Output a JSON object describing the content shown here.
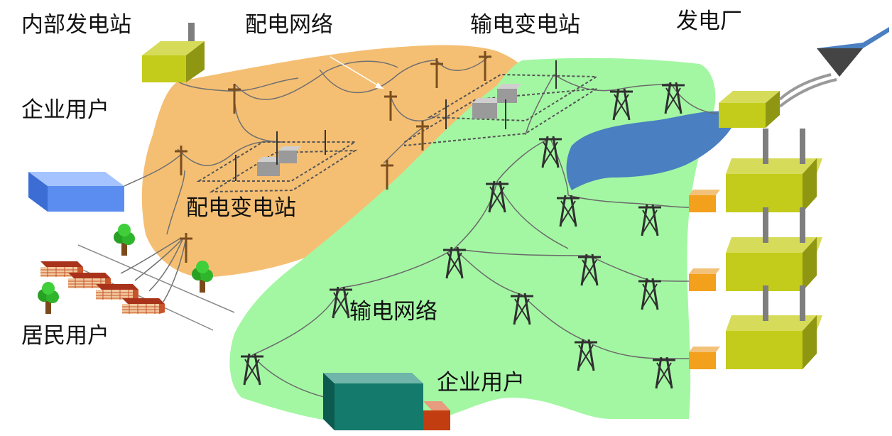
{
  "labels": {
    "internal_station": "内部发电站",
    "distribution_network": "配电网络",
    "transmission_substation": "输电变电站",
    "power_plant": "发电厂",
    "enterprise_user_top": "企业用户",
    "distribution_substation": "配电变电站",
    "residential_user": "居民用户",
    "transmission_network": "输电网络",
    "enterprise_user_bottom": "企业用户"
  },
  "colors": {
    "distribution_region": "#f5bf73",
    "transmission_region": "#a3f7a3",
    "lake": "#4a7fc1",
    "olive_box": "#c3cc1a",
    "blue_box": "#5b8df0",
    "teal_box": "#137a6c",
    "brick": "#c9542a",
    "tree": "#27a024",
    "tower": "#303030",
    "pole": "#7a4e1e"
  },
  "icons": [
    "tower-icon",
    "pole-icon",
    "factory-icon",
    "house-icon",
    "tree-icon",
    "transformer-icon",
    "hopper-icon",
    "lake-icon"
  ]
}
